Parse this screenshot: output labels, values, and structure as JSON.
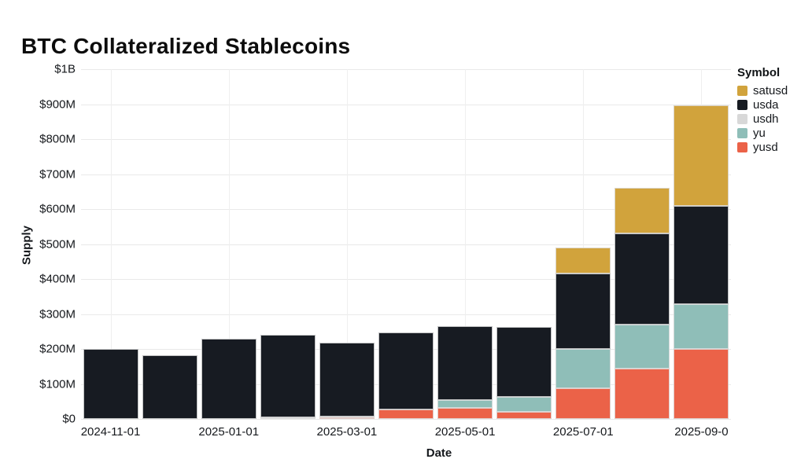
{
  "title": "BTC Collateralized Stablecoins",
  "legend": {
    "title": "Symbol",
    "items": [
      {
        "label": "satusd",
        "color": "#d1a33c"
      },
      {
        "label": "usda",
        "color": "#171b22"
      },
      {
        "label": "usdh",
        "color": "#d8d8d8"
      },
      {
        "label": "yu",
        "color": "#8fbeb8"
      },
      {
        "label": "yusd",
        "color": "#eb6248"
      }
    ]
  },
  "chart_data": {
    "type": "bar",
    "stacked": true,
    "title": "BTC Collateralized Stablecoins",
    "xlabel": "Date",
    "ylabel": "Supply",
    "unit": "USD millions",
    "ylim": [
      0,
      1000
    ],
    "grid": true,
    "legend_position": "top-right",
    "categories": [
      "2024-11",
      "2024-12",
      "2025-01",
      "2025-02",
      "2025-03",
      "2025-04",
      "2025-05",
      "2025-06",
      "2025-07",
      "2025-08",
      "2025-09"
    ],
    "x_tick_labels": [
      "2024-11-01",
      "2025-01-01",
      "2025-03-01",
      "2025-05-01",
      "2025-07-01",
      "2025-09-0"
    ],
    "y_tick_labels": [
      "$0",
      "$100M",
      "$200M",
      "$300M",
      "$400M",
      "$500M",
      "$600M",
      "$700M",
      "$800M",
      "$900M",
      "$1B"
    ],
    "series": [
      {
        "name": "satusd",
        "color": "#d1a33c",
        "values": [
          0,
          0,
          0,
          0,
          0,
          0,
          0,
          0,
          74,
          130,
          288
        ]
      },
      {
        "name": "usda",
        "color": "#171b22",
        "values": [
          200,
          182,
          229,
          236,
          211,
          221,
          212,
          200,
          216,
          261,
          280
        ]
      },
      {
        "name": "usdh",
        "color": "#d8d8d8",
        "values": [
          0,
          0,
          0,
          4,
          2,
          0,
          0,
          0,
          0,
          0,
          0
        ]
      },
      {
        "name": "yu",
        "color": "#8fbeb8",
        "values": [
          0,
          0,
          0,
          0,
          0,
          0,
          22,
          43,
          112,
          126,
          128
        ]
      },
      {
        "name": "yusd",
        "color": "#eb6248",
        "values": [
          0,
          0,
          0,
          0,
          5,
          27,
          31,
          20,
          88,
          144,
          200
        ]
      }
    ],
    "stack_order_bottom_to_top": [
      "yusd",
      "yu",
      "usdh",
      "usda",
      "satusd"
    ]
  }
}
